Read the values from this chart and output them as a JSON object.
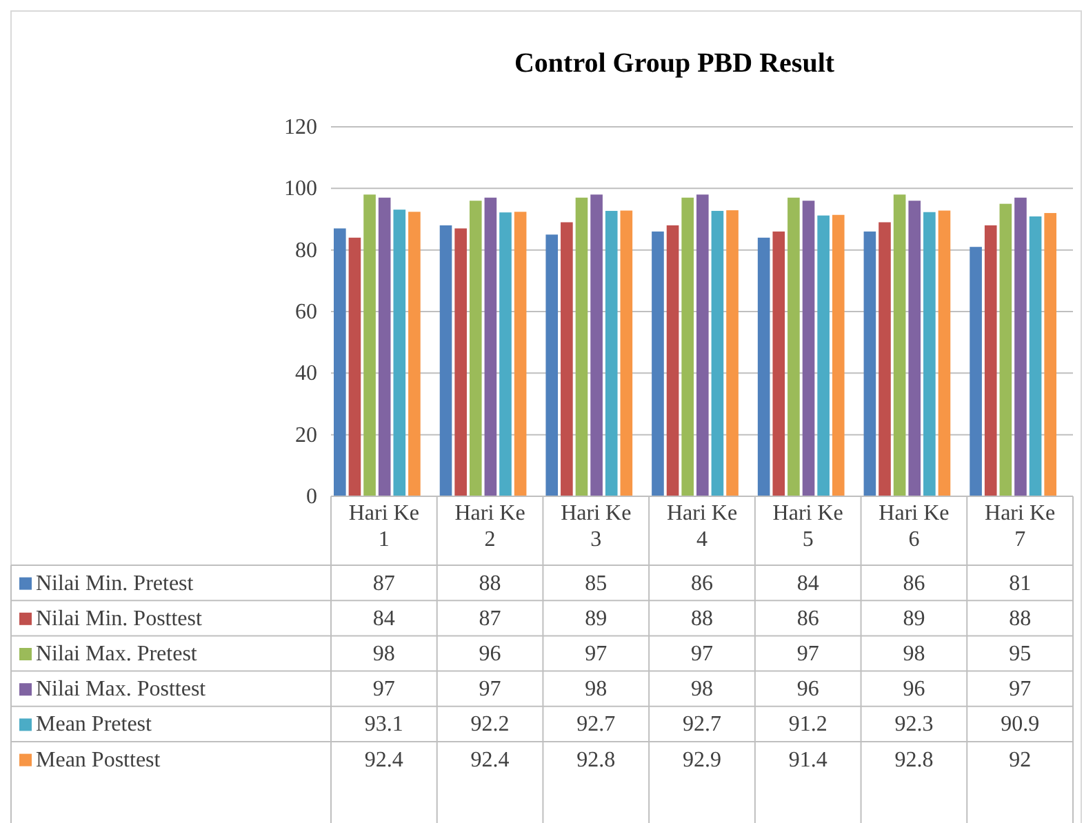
{
  "chart_data": {
    "type": "bar",
    "title": "Control Group PBD Result",
    "categories": [
      "Hari Ke 1",
      "Hari Ke 2",
      "Hari Ke 3",
      "Hari Ke 4",
      "Hari Ke 5",
      "Hari Ke 6",
      "Hari Ke 7"
    ],
    "series": [
      {
        "name": "Nilai Min. Pretest",
        "color": "#4f81bd",
        "values": [
          87,
          88,
          85,
          86,
          84,
          86,
          81
        ]
      },
      {
        "name": "Nilai Min. Posttest",
        "color": "#c0504d",
        "values": [
          84,
          87,
          89,
          88,
          86,
          89,
          88
        ]
      },
      {
        "name": "Nilai Max. Pretest",
        "color": "#9bbb59",
        "values": [
          98,
          96,
          97,
          97,
          97,
          98,
          95
        ]
      },
      {
        "name": "Nilai Max. Posttest",
        "color": "#8064a2",
        "values": [
          97,
          97,
          98,
          98,
          96,
          96,
          97
        ]
      },
      {
        "name": "Mean Pretest",
        "color": "#4bacc6",
        "values": [
          93.1,
          92.2,
          92.7,
          92.7,
          91.2,
          92.3,
          90.9
        ]
      },
      {
        "name": "Mean Posttest",
        "color": "#f79646",
        "values": [
          92.4,
          92.4,
          92.8,
          92.9,
          91.4,
          92.8,
          92
        ]
      }
    ],
    "ylim": [
      0,
      120
    ],
    "yticks": [
      0,
      20,
      40,
      60,
      80,
      100,
      120
    ],
    "grid": true,
    "legend": "bottom",
    "data_labels": true
  }
}
